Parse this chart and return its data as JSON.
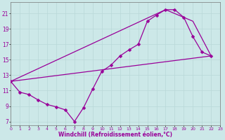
{
  "xlabel": "Windchill (Refroidissement éolien,°C)",
  "bg_color": "#cce8e8",
  "line_color": "#990099",
  "grid_color": "#b8d8d8",
  "xlim": [
    0,
    23
  ],
  "ylim": [
    6.5,
    22.5
  ],
  "xticks": [
    0,
    1,
    2,
    3,
    4,
    5,
    6,
    7,
    8,
    9,
    10,
    11,
    12,
    13,
    14,
    15,
    16,
    17,
    18,
    19,
    20,
    21,
    22,
    23
  ],
  "yticks": [
    7,
    9,
    11,
    13,
    15,
    17,
    19,
    21
  ],
  "curve_x": [
    0,
    1,
    2,
    3,
    4,
    5,
    6,
    7,
    8,
    9,
    10,
    11,
    12,
    13,
    14,
    15,
    16,
    17,
    18,
    19,
    20,
    21,
    22
  ],
  "curve_y": [
    12.2,
    10.8,
    10.5,
    9.8,
    9.2,
    8.9,
    8.5,
    7.0,
    8.8,
    11.2,
    13.5,
    14.3,
    15.5,
    16.3,
    17.0,
    20.0,
    20.8,
    21.5,
    21.5,
    20.5,
    18.0,
    16.0,
    15.5
  ],
  "line2_x": [
    0,
    17,
    20,
    22
  ],
  "line2_y": [
    12.2,
    21.5,
    20.0,
    15.5
  ],
  "line3_x": [
    0,
    22
  ],
  "line3_y": [
    12.2,
    15.5
  ],
  "markersize": 2.5,
  "linewidth": 0.9
}
